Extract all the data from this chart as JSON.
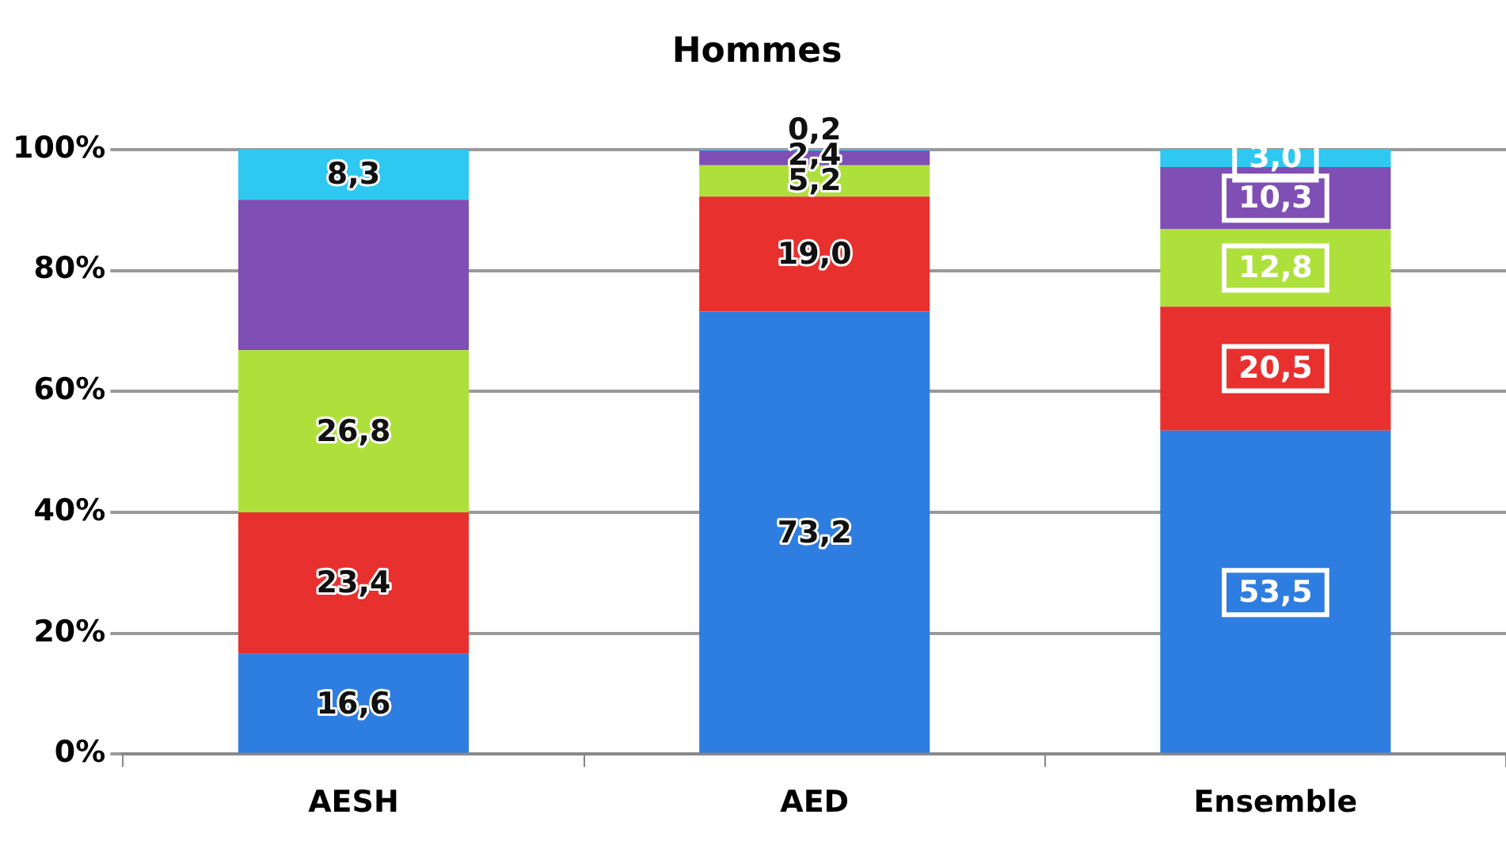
{
  "chart_data": {
    "type": "bar",
    "stacked": true,
    "title": "Hommes",
    "categories": [
      "AESH",
      "AED",
      "Ensemble"
    ],
    "series": [
      {
        "color": "#2e7de1",
        "values": [
          16.6,
          73.2,
          53.5
        ],
        "value_labels": [
          "16,6",
          "73,2",
          "53,5"
        ]
      },
      {
        "color": "#e8302e",
        "values": [
          23.4,
          19.0,
          20.5
        ],
        "value_labels": [
          "23,4",
          "19,0",
          "20,5"
        ]
      },
      {
        "color": "#aee03c",
        "values": [
          26.8,
          5.2,
          12.8
        ],
        "value_labels": [
          "26,8",
          "5,2",
          "12,8"
        ]
      },
      {
        "color": "#7f4fb5",
        "values": [
          24.9,
          2.4,
          10.3
        ],
        "value_labels": [
          null,
          "2,4",
          "10,3"
        ]
      },
      {
        "color": "#2ec8f0",
        "values": [
          8.3,
          0.2,
          3.0
        ],
        "value_labels": [
          "8,3",
          "0,2",
          "3,0"
        ]
      }
    ],
    "ylim": [
      0,
      100
    ],
    "yticks": [
      {
        "value": 0,
        "label": "0%"
      },
      {
        "value": 20,
        "label": "20%"
      },
      {
        "value": 40,
        "label": "40%"
      },
      {
        "value": 60,
        "label": "60%"
      },
      {
        "value": 80,
        "label": "80%"
      },
      {
        "value": 100,
        "label": "100%"
      }
    ],
    "grid": "y",
    "legend": false
  }
}
